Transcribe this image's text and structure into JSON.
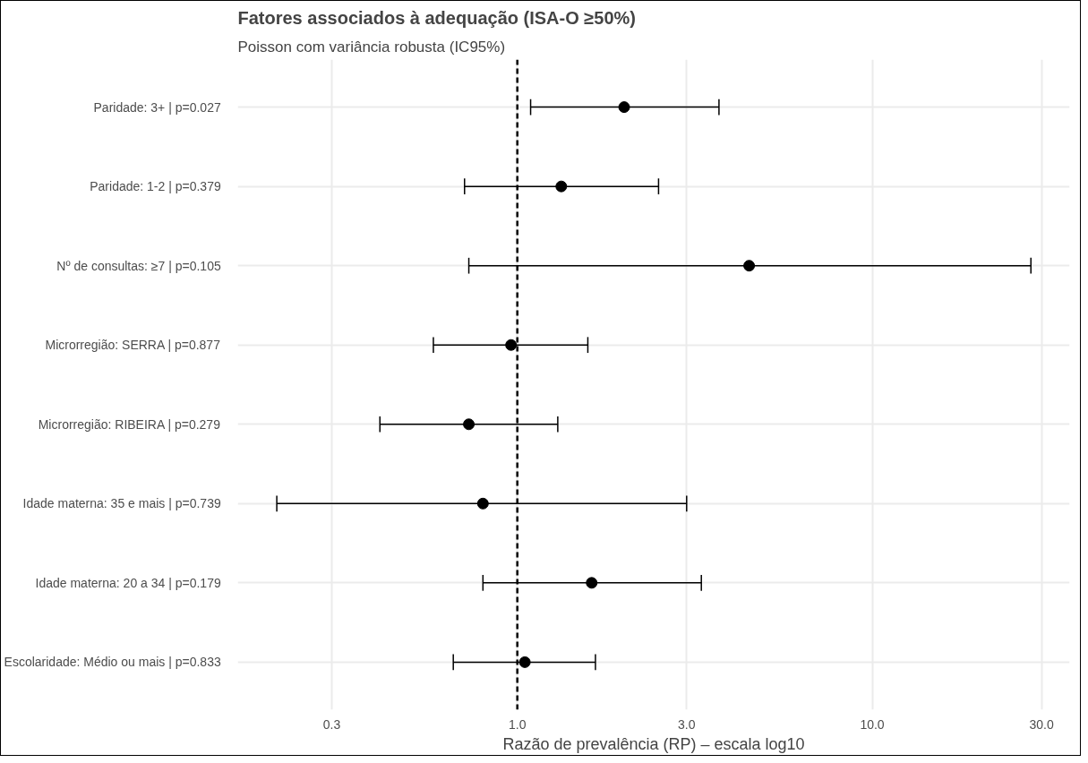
{
  "chart_data": {
    "type": "scatter",
    "orientation": "horizontal",
    "title": "Fatores associados à adequação (ISA-O ≥50%)",
    "subtitle": "Poisson com variância robusta (IC95%)",
    "xlabel": "Razão de prevalência (RP) – escala log10",
    "categories": [
      "Paridade: 3+  |  p=0.027",
      "Paridade: 1-2  |  p=0.379",
      "Nº de consultas: ≥7  |  p=0.105",
      "Microrregião: SERRA  |  p=0.877",
      "Microrregião: RIBEIRA  |  p=0.279",
      "Idade materna: 35 e mais  |  p=0.739",
      "Idade materna: 20 a 34  |  p=0.179",
      "Escolaridade: Médio ou mais  |  p=0.833"
    ],
    "values": [
      2.0,
      1.33,
      4.5,
      0.96,
      0.73,
      0.8,
      1.62,
      1.05
    ],
    "errors": [
      [
        1.09,
        3.7
      ],
      [
        0.71,
        2.5
      ],
      [
        0.73,
        28
      ],
      [
        0.58,
        1.58
      ],
      [
        0.41,
        1.3
      ],
      [
        0.21,
        3.0
      ],
      [
        0.8,
        3.3
      ],
      [
        0.66,
        1.66
      ]
    ],
    "color": "#000000",
    "marker": "circle",
    "log": "x",
    "xlim": [
      0.163,
      36
    ],
    "xticks": [
      0.3,
      {
        "value": 1,
        "label": "1.0"
      },
      {
        "value": 3,
        "label": "3.0"
      },
      {
        "value": 10,
        "label": "10.0"
      },
      {
        "value": 30,
        "label": "30.0"
      }
    ],
    "ref_lines": [
      {
        "axis": "x",
        "value": 1,
        "label": null,
        "color": "#000000",
        "line_style": "dashed"
      }
    ],
    "grid": true
  }
}
